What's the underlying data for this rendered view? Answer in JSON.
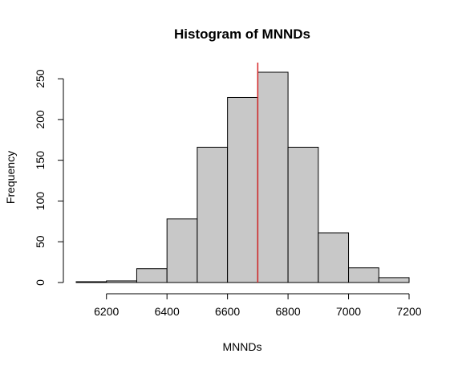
{
  "chart_data": {
    "type": "bar",
    "title": "Histogram of MNNDs",
    "xlabel": "MNNDs",
    "ylabel": "Frequency",
    "bins": [
      {
        "start": 6100,
        "end": 6200,
        "count": 1
      },
      {
        "start": 6200,
        "end": 6300,
        "count": 2
      },
      {
        "start": 6300,
        "end": 6400,
        "count": 17
      },
      {
        "start": 6400,
        "end": 6500,
        "count": 78
      },
      {
        "start": 6500,
        "end": 6600,
        "count": 166
      },
      {
        "start": 6600,
        "end": 6700,
        "count": 227
      },
      {
        "start": 6700,
        "end": 6800,
        "count": 258
      },
      {
        "start": 6800,
        "end": 6900,
        "count": 166
      },
      {
        "start": 6900,
        "end": 7000,
        "count": 61
      },
      {
        "start": 7000,
        "end": 7100,
        "count": 18
      },
      {
        "start": 7100,
        "end": 7200,
        "count": 6
      }
    ],
    "xlim": [
      6100,
      7200
    ],
    "ylim": [
      0,
      258
    ],
    "xticks": [
      6200,
      6400,
      6600,
      6800,
      7000,
      7200
    ],
    "yticks": [
      0,
      50,
      100,
      150,
      200,
      250
    ],
    "reference_line": {
      "x": 6700,
      "color": "#d62728"
    },
    "bar_color": "#c8c8c8",
    "grid": false,
    "legend": "none"
  }
}
